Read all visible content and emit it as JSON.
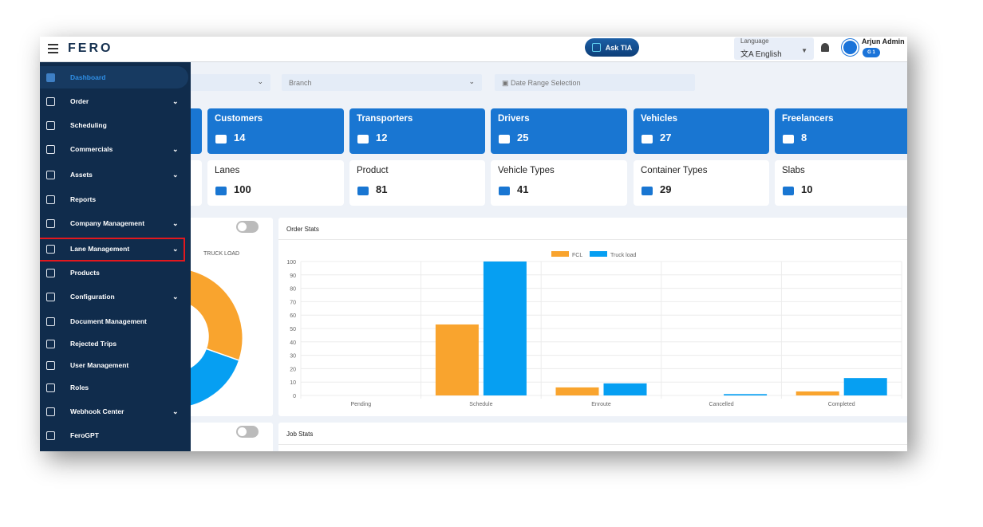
{
  "header": {
    "logo": "FERO",
    "ask_label": "Ask TIA",
    "language_label": "Language",
    "language_value": "English",
    "user_name": "Arjun Admin",
    "user_badge": "G 1"
  },
  "sidebar": {
    "items": [
      {
        "label": "Dashboard",
        "icon": "dashboard-icon",
        "chevron": false
      },
      {
        "label": "Order",
        "icon": "order-icon",
        "chevron": true
      },
      {
        "label": "Scheduling",
        "icon": "scheduling-icon",
        "chevron": false
      },
      {
        "label": "Commercials",
        "icon": "commercials-icon",
        "chevron": true
      },
      {
        "label": "Assets",
        "icon": "assets-icon",
        "chevron": true
      },
      {
        "label": "Reports",
        "icon": "reports-icon",
        "chevron": false
      },
      {
        "label": "Company Management",
        "icon": "company-icon",
        "chevron": true
      },
      {
        "label": "Lane Management",
        "icon": "lane-icon",
        "chevron": true
      },
      {
        "label": "Products",
        "icon": "products-icon",
        "chevron": false
      },
      {
        "label": "Configuration",
        "icon": "gear-icon",
        "chevron": true
      },
      {
        "label": "Document Management",
        "icon": "document-icon",
        "chevron": false
      },
      {
        "label": "Rejected Trips",
        "icon": "trash-icon",
        "chevron": false
      },
      {
        "label": "User Management",
        "icon": "users-icon",
        "chevron": false
      },
      {
        "label": "Roles",
        "icon": "shield-icon",
        "chevron": false
      },
      {
        "label": "Webhook Center",
        "icon": "api-icon",
        "chevron": true
      },
      {
        "label": "FeroGPT",
        "icon": "bot-icon",
        "chevron": false
      }
    ]
  },
  "filters": {
    "branch": "Branch",
    "date": "Date Range Selection"
  },
  "cards_row1": [
    {
      "title": "Customers",
      "value": "14"
    },
    {
      "title": "Transporters",
      "value": "12"
    },
    {
      "title": "Drivers",
      "value": "25"
    },
    {
      "title": "Vehicles",
      "value": "27"
    },
    {
      "title": "Freelancers",
      "value": "8"
    }
  ],
  "cards_row2": [
    {
      "title": "Lanes",
      "value": "100"
    },
    {
      "title": "Product",
      "value": "81"
    },
    {
      "title": "Vehicle Types",
      "value": "41"
    },
    {
      "title": "Container Types",
      "value": "29"
    },
    {
      "title": "Slabs",
      "value": "10"
    }
  ],
  "donut": {
    "legend": "TRUCK LOAD"
  },
  "job_stats": {
    "title": "Job Stats"
  },
  "chart_data": {
    "type": "bar",
    "title": "Order Stats",
    "categories": [
      "Pending",
      "Schedule",
      "Enroute",
      "Cancelled",
      "Completed"
    ],
    "series": [
      {
        "name": "FCL",
        "color": "#f9a42e",
        "values": [
          0,
          53,
          6,
          0,
          3
        ]
      },
      {
        "name": "Truck load",
        "color": "#069ff2",
        "values": [
          0,
          100,
          9,
          1,
          13
        ]
      }
    ],
    "ylim": [
      0,
      100
    ],
    "yticks": [
      0,
      10,
      20,
      30,
      40,
      50,
      60,
      70,
      80,
      90,
      100
    ],
    "legend": "top",
    "grid": true
  }
}
